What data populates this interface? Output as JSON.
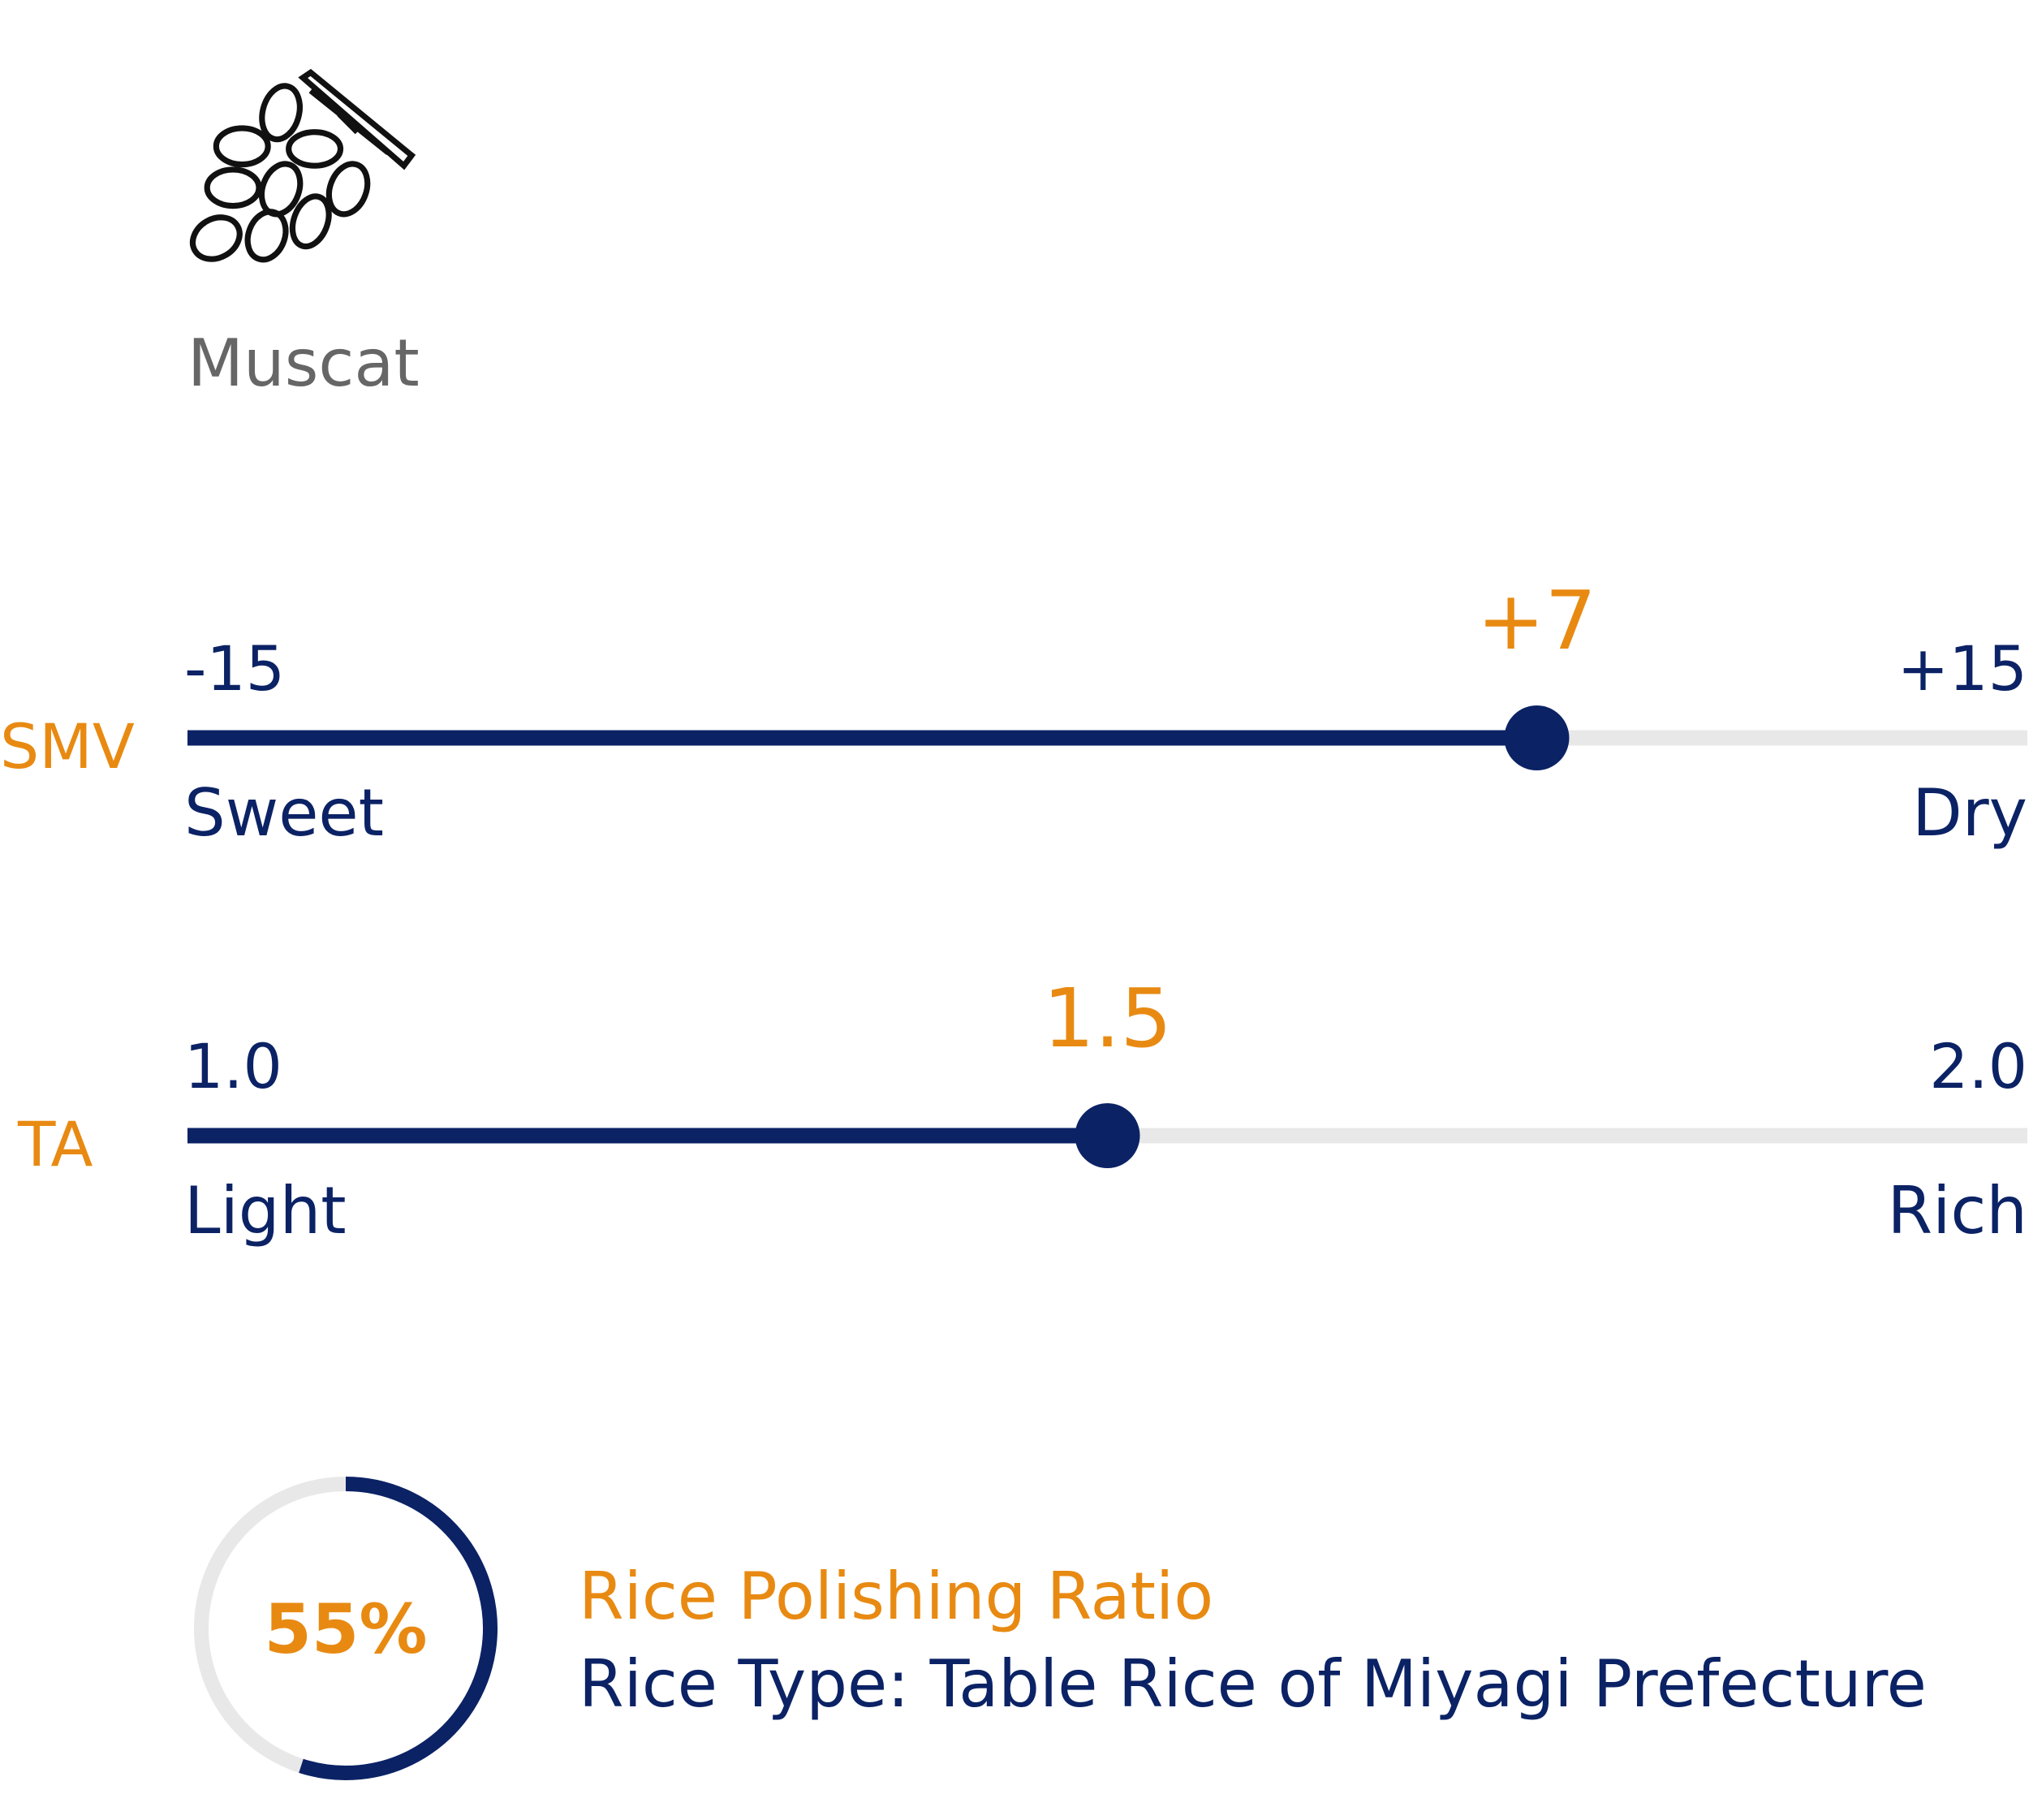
{
  "flavor": {
    "label": "Muscat"
  },
  "sliders": [
    {
      "name": "SMV",
      "min": -15,
      "max": {
        "value": 15,
        "label": "+15"
      },
      "value": {
        "value": 7,
        "label": "+7"
      },
      "low_label": "Sweet",
      "high_label": "Dry"
    },
    {
      "name": "TA",
      "min": {
        "value": 1,
        "label": "1.0"
      },
      "max": {
        "value": 2,
        "label": "2.0"
      },
      "value": 1.5,
      "low_label": "Light",
      "high_label": "Rich"
    }
  ],
  "polishing": {
    "value": {
      "value": 55,
      "label": "55%"
    },
    "title": "Rice Polishing Ratio",
    "rice_type": "Rice Type: Table Rice of Miyagi Prefecture"
  }
}
